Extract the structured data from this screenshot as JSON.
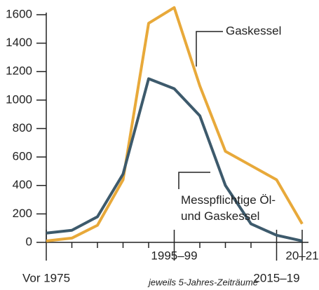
{
  "chart_data": {
    "type": "line",
    "categories": [
      "Vor 1975",
      null,
      null,
      null,
      null,
      "1995–99",
      null,
      null,
      null,
      "2015–19",
      "20–21"
    ],
    "x_label": "jeweils 5-Jahres-Zeiträume",
    "series": [
      {
        "name": "Gaskessel",
        "color": "#e8a93a",
        "values": [
          10,
          30,
          120,
          440,
          1540,
          1650,
          1100,
          640,
          540,
          440,
          130
        ]
      },
      {
        "name": "Messpflichtige Öl- und Gaskessel",
        "color": "#3d5a6c",
        "values": [
          65,
          85,
          180,
          480,
          1150,
          1080,
          890,
          400,
          130,
          50,
          10
        ]
      }
    ],
    "ylim": [
      0,
      1600
    ],
    "yticks": [
      0,
      200,
      400,
      600,
      800,
      1000,
      1200,
      1400,
      1600
    ]
  }
}
